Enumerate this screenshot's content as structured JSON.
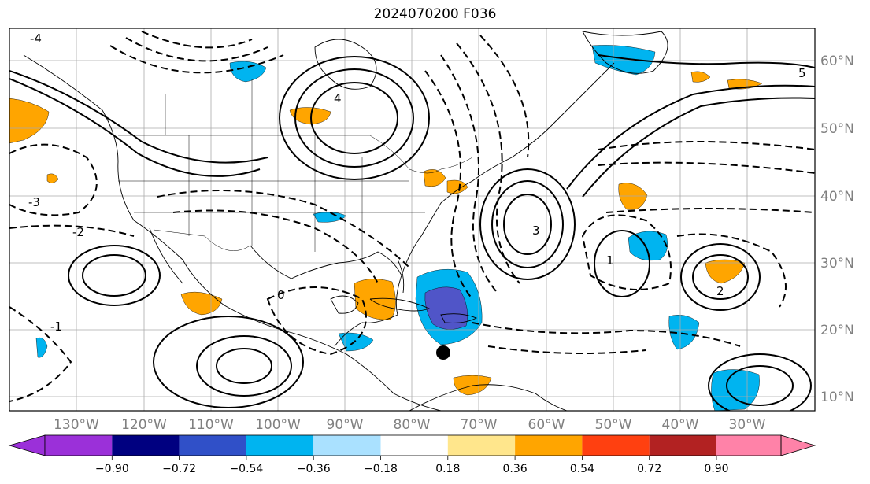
{
  "title": "2024070200 F036",
  "map": {
    "lon_labels": [
      "130°W",
      "120°W",
      "110°W",
      "100°W",
      "90°W",
      "80°W",
      "70°W",
      "60°W",
      "50°W",
      "40°W",
      "30°W"
    ],
    "lat_labels": [
      "60°N",
      "50°N",
      "40°N",
      "30°N",
      "20°N",
      "10°N"
    ]
  },
  "colorbar": {
    "colors": [
      "#9b30d9",
      "#000080",
      "#3050c8",
      "#00b4f0",
      "#aae1ff",
      "#ffffff",
      "#ffe68c",
      "#ffa500",
      "#ff4010",
      "#b22222",
      "#ff82a8"
    ],
    "under_color": "#9b30d9",
    "over_color": "#ff82a8",
    "ticks": [
      "−0.90",
      "−0.72",
      "−0.54",
      "−0.36",
      "−0.18",
      "0.18",
      "0.36",
      "0.54",
      "0.72",
      "0.90"
    ]
  },
  "contour_labels": [
    {
      "text": "-4"
    },
    {
      "text": "-3"
    },
    {
      "text": "-2"
    },
    {
      "text": "-1"
    },
    {
      "text": "0"
    },
    {
      "text": "1"
    },
    {
      "text": "2"
    },
    {
      "text": "3"
    },
    {
      "text": "4"
    },
    {
      "text": "5"
    }
  ]
}
